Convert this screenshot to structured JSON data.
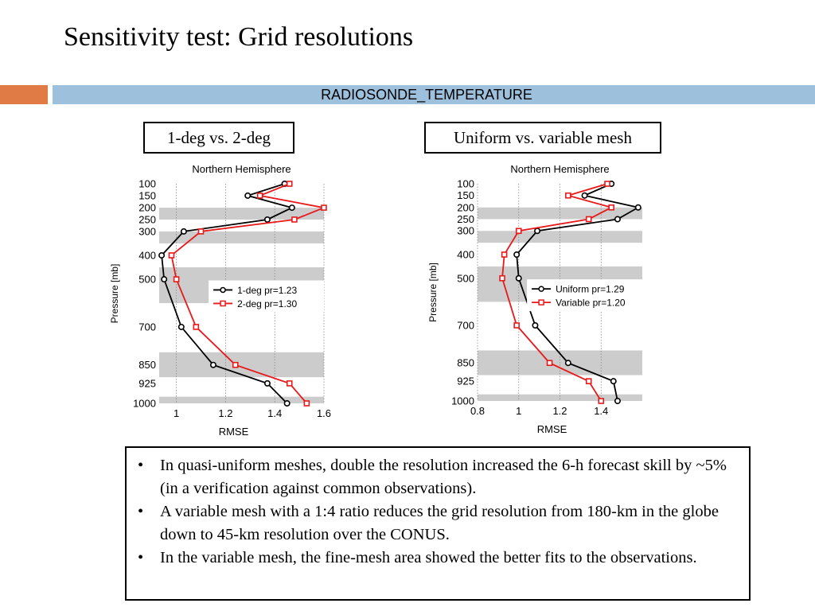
{
  "slide": {
    "title": "Sensitivity test: Grid resolutions",
    "subtitle": "RADIOSONDE_TEMPERATURE",
    "accent_color": "#e07b46",
    "subtitle_bar_color": "#9dc0dc"
  },
  "captions": {
    "left": "1-deg vs. 2-deg",
    "right": "Uniform vs. variable mesh"
  },
  "chart_data": [
    {
      "type": "line",
      "title": "Northern Hemisphere",
      "xlabel": "RMSE",
      "ylabel": "Pressure [mb]",
      "xlim": [
        0.93,
        1.6
      ],
      "ylim": [
        100,
        1000
      ],
      "xticks": [
        1,
        1.2,
        1.4,
        1.6
      ],
      "xtick_labels": [
        "1",
        "1.2",
        "1.4",
        "1.6"
      ],
      "yticks": [
        100,
        150,
        200,
        250,
        300,
        400,
        500,
        700,
        850,
        925,
        1000
      ],
      "legend_position": "center-right",
      "x_grid": true,
      "series": [
        {
          "name": "1-deg pr=1.23",
          "color": "#000000",
          "marker": "circle",
          "x": [
            1.44,
            1.29,
            1.47,
            1.37,
            1.03,
            0.94,
            0.95,
            1.02,
            1.15,
            1.37,
            1.45
          ],
          "y": [
            100,
            150,
            200,
            250,
            300,
            400,
            500,
            700,
            850,
            925,
            1000
          ]
        },
        {
          "name": "2-deg pr=1.30",
          "color": "#e8191a",
          "marker": "square",
          "x": [
            1.46,
            1.34,
            1.6,
            1.48,
            1.1,
            0.98,
            1.0,
            1.08,
            1.24,
            1.46,
            1.53
          ],
          "y": [
            100,
            150,
            200,
            250,
            300,
            400,
            500,
            700,
            850,
            925,
            1000
          ]
        }
      ]
    },
    {
      "type": "line",
      "title": "Northern Hemisphere",
      "xlabel": "RMSE",
      "ylabel": "Pressure [mb]",
      "xlim": [
        0.8,
        1.6
      ],
      "ylim": [
        100,
        1000
      ],
      "xticks": [
        0.8,
        1,
        1.2,
        1.4
      ],
      "xtick_labels": [
        "0.8",
        "1",
        "1.2",
        "1.4"
      ],
      "yticks": [
        100,
        150,
        200,
        250,
        300,
        400,
        500,
        700,
        850,
        925,
        1000
      ],
      "legend_position": "center-right",
      "x_grid": true,
      "series": [
        {
          "name": "Uniform pr=1.29",
          "color": "#000000",
          "marker": "circle",
          "x": [
            1.45,
            1.32,
            1.58,
            1.48,
            1.09,
            0.99,
            1.0,
            1.08,
            1.24,
            1.46,
            1.48
          ],
          "y": [
            100,
            150,
            200,
            250,
            300,
            400,
            500,
            700,
            850,
            925,
            1000
          ]
        },
        {
          "name": "Variable pr=1.20",
          "color": "#e8191a",
          "marker": "square",
          "x": [
            1.43,
            1.24,
            1.45,
            1.34,
            1.0,
            0.93,
            0.92,
            0.99,
            1.15,
            1.34,
            1.4
          ],
          "y": [
            100,
            150,
            200,
            250,
            300,
            400,
            500,
            700,
            850,
            925,
            1000
          ]
        }
      ]
    }
  ],
  "bullets": [
    "In quasi-uniform meshes, double the resolution increased the 6-h forecast skill by ~5% (in a verification against common observations).",
    "A variable mesh with a 1:4 ratio reduces the grid resolution from 180-km in the globe down to 45-km resolution over the CONUS.",
    "In the variable mesh, the fine-mesh area showed the better fits to the observations."
  ],
  "bullet_symbol": "•"
}
